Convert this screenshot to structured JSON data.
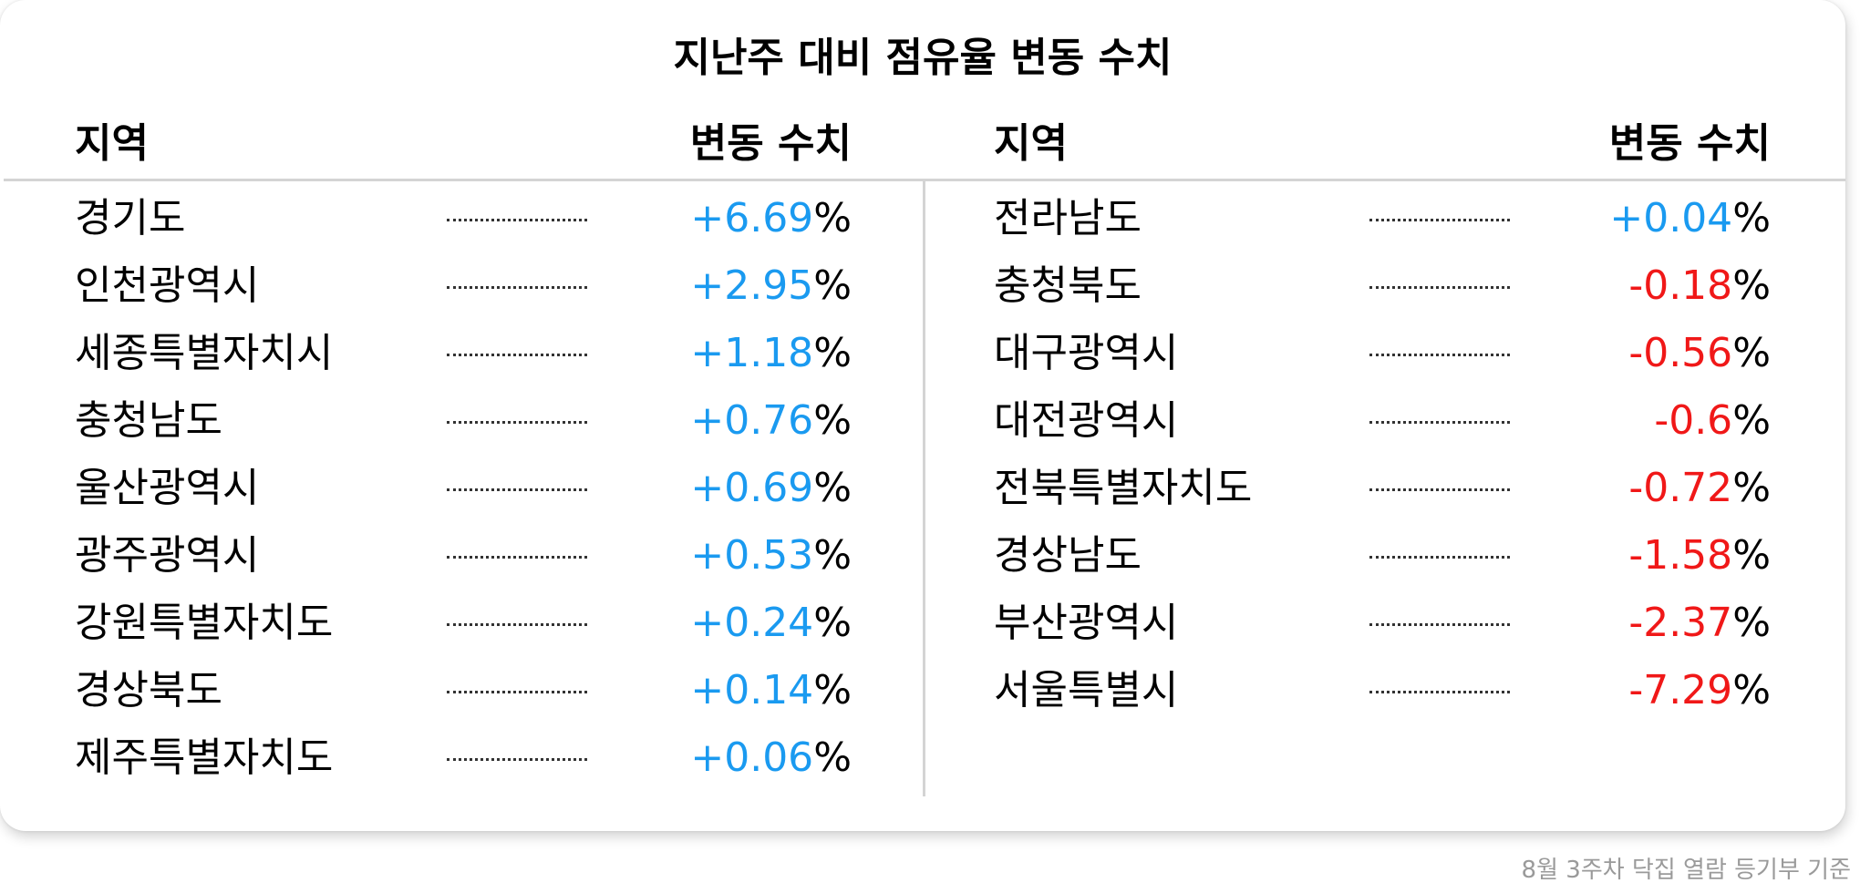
{
  "title": "지난주 대비 점유율 변동 수치",
  "headers": {
    "region": "지역",
    "change": "변동 수치"
  },
  "colors": {
    "positive": "#1a9af0",
    "negative": "#f01818",
    "percent_sign": "#000000"
  },
  "left_rows": [
    {
      "region": "경기도",
      "value": "+6.69",
      "unit": "%",
      "trend": "positive"
    },
    {
      "region": "인천광역시",
      "value": "+2.95",
      "unit": "%",
      "trend": "positive"
    },
    {
      "region": "세종특별자치시",
      "value": "+1.18",
      "unit": "%",
      "trend": "positive"
    },
    {
      "region": "충청남도",
      "value": "+0.76",
      "unit": "%",
      "trend": "positive"
    },
    {
      "region": "울산광역시",
      "value": "+0.69",
      "unit": "%",
      "trend": "positive"
    },
    {
      "region": "광주광역시",
      "value": "+0.53",
      "unit": "%",
      "trend": "positive"
    },
    {
      "region": "강원특별자치도",
      "value": "+0.24",
      "unit": "%",
      "trend": "positive"
    },
    {
      "region": "경상북도",
      "value": "+0.14",
      "unit": "%",
      "trend": "positive"
    },
    {
      "region": "제주특별자치도",
      "value": "+0.06",
      "unit": "%",
      "trend": "positive"
    }
  ],
  "right_rows": [
    {
      "region": "전라남도",
      "value": "+0.04",
      "unit": "%",
      "trend": "positive"
    },
    {
      "region": "충청북도",
      "value": "-0.18",
      "unit": "%",
      "trend": "negative"
    },
    {
      "region": "대구광역시",
      "value": "-0.56",
      "unit": "%",
      "trend": "negative"
    },
    {
      "region": "대전광역시",
      "value": "-0.6",
      "unit": "%",
      "trend": "negative"
    },
    {
      "region": "전북특별자치도",
      "value": "-0.72",
      "unit": "%",
      "trend": "negative"
    },
    {
      "region": "경상남도",
      "value": "-1.58",
      "unit": "%",
      "trend": "negative"
    },
    {
      "region": "부산광역시",
      "value": "-2.37",
      "unit": "%",
      "trend": "negative"
    },
    {
      "region": "서울특별시",
      "value": "-7.29",
      "unit": "%",
      "trend": "negative"
    }
  ],
  "footnote": "8월 3주차 닥집 열람 등기부 기준"
}
